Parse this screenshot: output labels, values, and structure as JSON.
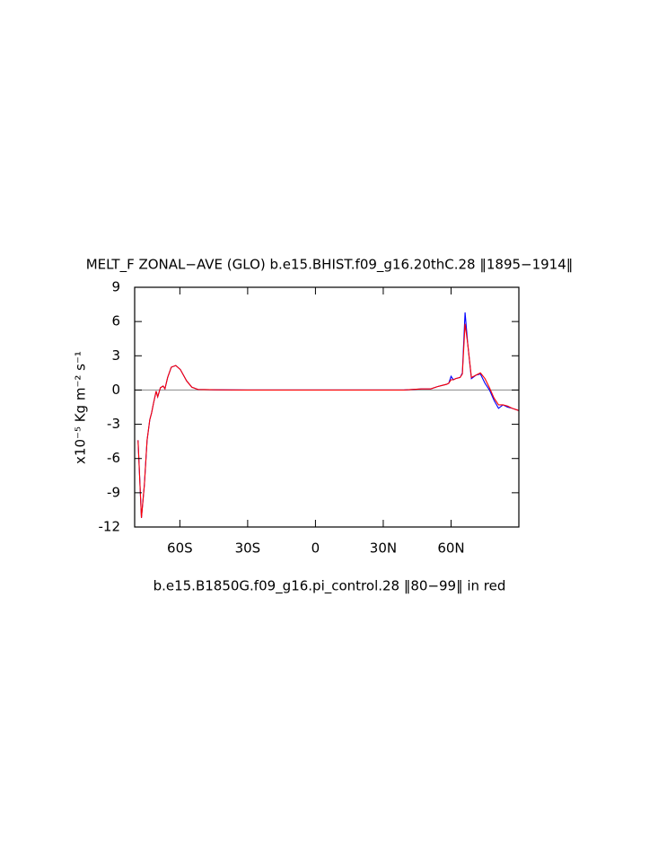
{
  "chart_data": {
    "type": "line",
    "title": "MELT_F ZONAL−AVE (GLO) b.e15.BHIST.f09_g16.20thC.28 ‖1895−1914‖",
    "subtitle": "b.e15.B1850G.f09_g16.pi_control.28 ‖80−99‖ in red",
    "y_label": "x10⁻⁵ Kg m⁻² s⁻¹",
    "xlim": [
      -80,
      90
    ],
    "ylim": [
      -12,
      9
    ],
    "xticks": [
      {
        "value": -60,
        "label": "60S"
      },
      {
        "value": -30,
        "label": "30S"
      },
      0,
      {
        "value": 30,
        "label": "30N"
      },
      {
        "value": 60,
        "label": "60N"
      }
    ],
    "yticks": [
      -12,
      -9,
      -6,
      -3,
      0,
      3,
      6,
      9
    ],
    "reference_line": 0,
    "x": [
      -78.5,
      -77,
      -75.7,
      -74.5,
      -73.3,
      -72.5,
      -71.7,
      -70.5,
      -69.8,
      -68.6,
      -67.4,
      -66.6,
      -65.4,
      -63.8,
      -61.8,
      -59.8,
      -57,
      -54.7,
      -52,
      -44,
      -30,
      0,
      39,
      43,
      47,
      51,
      54,
      56,
      58,
      59,
      60,
      61,
      62,
      64,
      65,
      66.2,
      67.4,
      69,
      71,
      73,
      75,
      77,
      79,
      81,
      83,
      85,
      87,
      90
    ],
    "series": [
      {
        "name": "b.e15.BHIST.f09_g16.20thC.28",
        "color": "#0000ff",
        "values": [
          -4.4,
          -11.2,
          -8.3,
          -4.4,
          -2.6,
          -2.0,
          -1.2,
          -0.1,
          -0.6,
          0.2,
          0.35,
          0.1,
          1.1,
          2.0,
          2.15,
          1.8,
          0.8,
          0.25,
          0.05,
          0.02,
          0,
          0,
          0,
          0.05,
          0.1,
          0.1,
          0.3,
          0.4,
          0.5,
          0.6,
          1.2,
          0.9,
          1.0,
          1.1,
          1.5,
          6.8,
          4.0,
          1.0,
          1.3,
          1.4,
          0.6,
          0.0,
          -0.9,
          -1.6,
          -1.3,
          -1.5,
          -1.6,
          -1.8
        ]
      },
      {
        "name": "b.e15.B1850G.f09_g16.pi_control.28",
        "color": "#ff0000",
        "values": [
          -4.4,
          -11.2,
          -8.3,
          -4.4,
          -2.6,
          -2.0,
          -1.2,
          -0.1,
          -0.6,
          0.2,
          0.35,
          0.1,
          1.1,
          2.0,
          2.15,
          1.8,
          0.8,
          0.25,
          0.05,
          0.02,
          0,
          0,
          0,
          0.05,
          0.1,
          0.1,
          0.3,
          0.4,
          0.5,
          0.6,
          0.9,
          0.9,
          1.0,
          1.1,
          1.4,
          5.8,
          4.0,
          1.1,
          1.3,
          1.5,
          1.0,
          0.2,
          -0.7,
          -1.3,
          -1.3,
          -1.4,
          -1.6,
          -1.8
        ]
      }
    ]
  }
}
